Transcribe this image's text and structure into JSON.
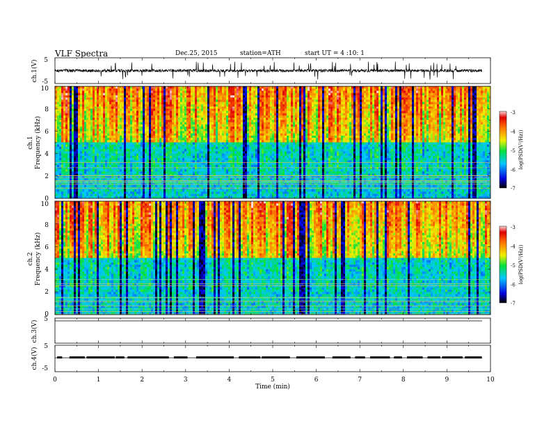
{
  "header": {
    "title": "VLF  Spectra",
    "date": "Dec.25, 2015",
    "station": "station=ATH",
    "start": "start  UT  =   4  :10: 1"
  },
  "chart_data": [
    {
      "type": "line",
      "panel": "ch1",
      "ylabel": "ch.1(V)",
      "ylim": [
        -5,
        5
      ],
      "yticks": [
        "5",
        "-5"
      ],
      "xlim": [
        0,
        10
      ],
      "signal_extent_min": 9.8,
      "baseline_v": 0,
      "typical_amplitude_v": 0.8,
      "spike_amplitude_v": 3.5
    },
    {
      "type": "heatmap",
      "panel": "ch1-spectrogram",
      "ylabel_channel": "ch.1",
      "ylabel": "Frequency (kHz)",
      "ylim": [
        0,
        10
      ],
      "yticks": [
        "0",
        "2",
        "4",
        "6",
        "8",
        "10"
      ],
      "xlim": [
        0,
        10
      ],
      "colorbar": {
        "label": "log(PSD(V²/Hz))",
        "range": [
          -7,
          -3
        ],
        "ticks": [
          "-3",
          "-4",
          "-5",
          "-6",
          "-7"
        ]
      }
    },
    {
      "type": "heatmap",
      "panel": "ch2-spectrogram",
      "ylabel_channel": "ch.2",
      "ylabel": "Frequency (kHz)",
      "ylim": [
        0,
        10
      ],
      "yticks": [
        "0",
        "2",
        "4",
        "6",
        "8",
        "10"
      ],
      "xlim": [
        0,
        10
      ],
      "colorbar": {
        "label": "log(PSD(V²/Hz))",
        "range": [
          -7,
          -3
        ],
        "ticks": [
          "-3",
          "-4",
          "-5",
          "-6",
          "-7"
        ]
      }
    },
    {
      "type": "line",
      "panel": "ch3",
      "ylabel": "ch.3(V)",
      "ylim": [
        -5,
        5
      ],
      "yticks": [
        "5"
      ],
      "xlim": [
        0,
        10
      ],
      "baseline_v": 0
    },
    {
      "type": "line",
      "panel": "ch4",
      "ylabel": "ch.4(V)",
      "ylim": [
        -5,
        5
      ],
      "yticks": [
        "5",
        "-5"
      ],
      "xlim": [
        0,
        10
      ],
      "signal_extent_min": 9.8,
      "baseline_v": 0,
      "burst_level_v": 0.8
    }
  ],
  "xaxis": {
    "label": "Time  (min)",
    "ticks": [
      "0",
      "1",
      "2",
      "3",
      "4",
      "5",
      "6",
      "7",
      "8",
      "9",
      "10"
    ]
  }
}
